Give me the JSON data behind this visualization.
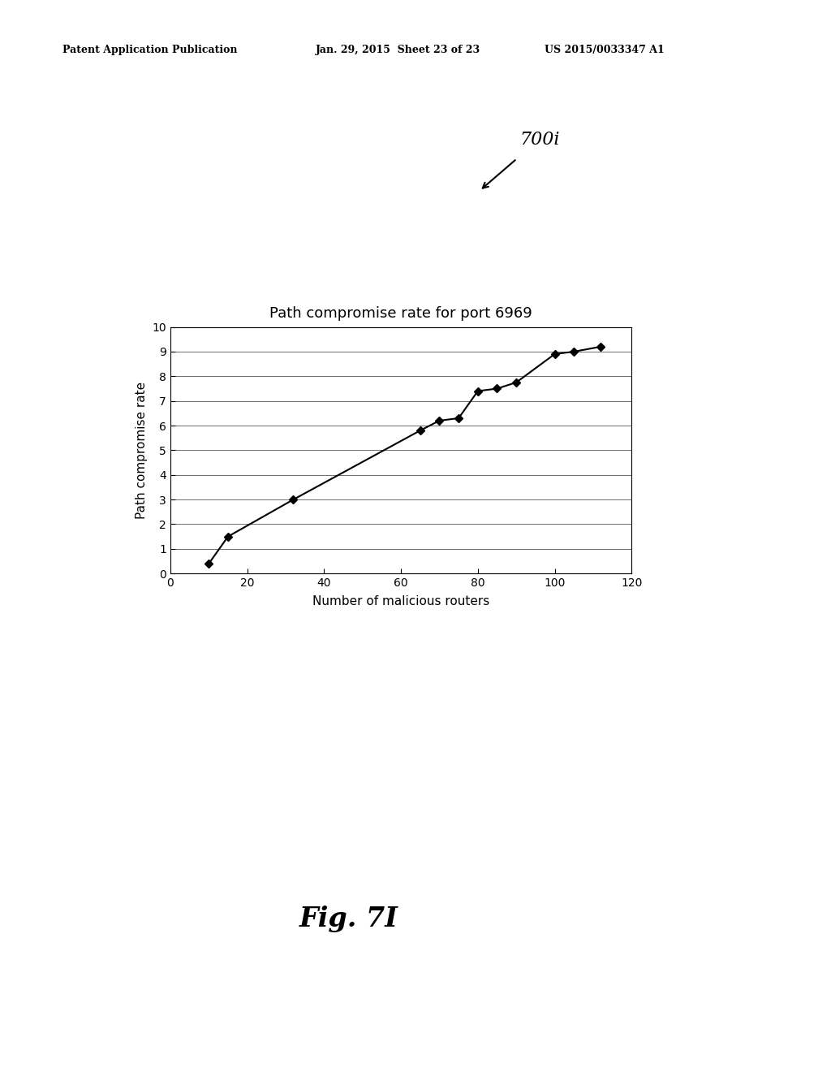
{
  "title": "Path compromise rate for port 6969",
  "xlabel": "Number of malicious routers",
  "ylabel": "Path compromise rate",
  "x_data": [
    10,
    15,
    32,
    65,
    70,
    75,
    80,
    85,
    90,
    100,
    105,
    112
  ],
  "y_data": [
    0.4,
    1.5,
    3.0,
    5.8,
    6.2,
    6.3,
    7.4,
    7.5,
    7.75,
    8.9,
    9.0,
    9.2
  ],
  "xlim": [
    0,
    120
  ],
  "ylim": [
    0,
    10
  ],
  "xticks": [
    0,
    20,
    40,
    60,
    80,
    100,
    120
  ],
  "yticks": [
    0,
    1,
    2,
    3,
    4,
    5,
    6,
    7,
    8,
    9,
    10
  ],
  "line_color": "#000000",
  "marker_color": "#000000",
  "background_color": "#ffffff",
  "label_700i": "700i",
  "header_left": "Patent Application Publication",
  "header_mid": "Jan. 29, 2015  Sheet 23 of 23",
  "header_right": "US 2015/0033347 A1",
  "fig_label": "Fig. 7I",
  "title_fontsize": 13,
  "axis_fontsize": 11,
  "tick_fontsize": 10
}
